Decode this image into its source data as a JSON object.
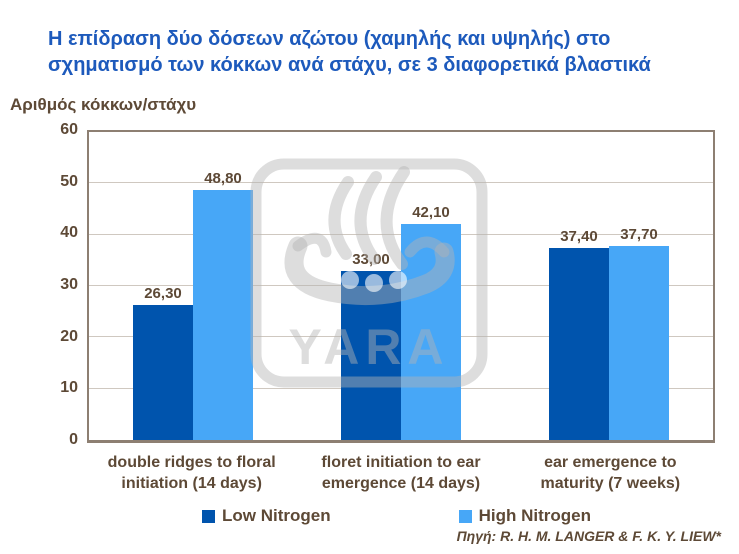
{
  "title": {
    "lines": [
      "Η επίδραση δύο δόσεων αζώτου (χαμηλής και υψηλής) στο",
      "σχηματισμό των κόκκων ανά στάχυ, σε 3 διαφορετικά βλαστικά"
    ]
  },
  "chart_data": {
    "type": "bar",
    "y_axis_label": "Αριθμός κόκκων/στάχυ",
    "ylim": [
      0,
      60
    ],
    "ytick_interval": 10,
    "yticks": [
      "60",
      "50",
      "40",
      "30",
      "20",
      "10",
      "0"
    ],
    "grid": true,
    "legend_position": "bottom",
    "categories": [
      {
        "label": "double ridges to floral initiation (14 days)",
        "lines": [
          "double ridges to floral",
          "initiation (14 days)"
        ]
      },
      {
        "label": "floret initiation to ear emergence (14 days)",
        "lines": [
          "floret initiation to ear",
          "emergence (14 days)"
        ]
      },
      {
        "label": "ear emergence to maturity (7 weeks)",
        "lines": [
          "ear emergence to",
          "maturity (7 weeks)"
        ]
      }
    ],
    "series": [
      {
        "name": "Low Nitrogen",
        "color": "#0054ad",
        "values": [
          26.3,
          33.0,
          37.4
        ],
        "value_labels": [
          "26,30",
          "33,00",
          "37,40"
        ]
      },
      {
        "name": "High Nitrogen",
        "color": "#47a7f7",
        "values": [
          48.8,
          42.1,
          37.7
        ],
        "value_labels": [
          "48,80",
          "42,10",
          "37,70"
        ]
      }
    ]
  },
  "source": "Πηγή: R. H. M. LANGER & F. K. Y. LIEW*",
  "watermark_text": "YARA",
  "colors": {
    "title": "#1d5abc",
    "text_brown": "#5d4936",
    "low_nitrogen": "#0054ad",
    "high_nitrogen": "#47a7f7",
    "plot_border": "#8d7f72",
    "gridline": "#cfc8c0",
    "watermark": "#b4b4b4"
  }
}
